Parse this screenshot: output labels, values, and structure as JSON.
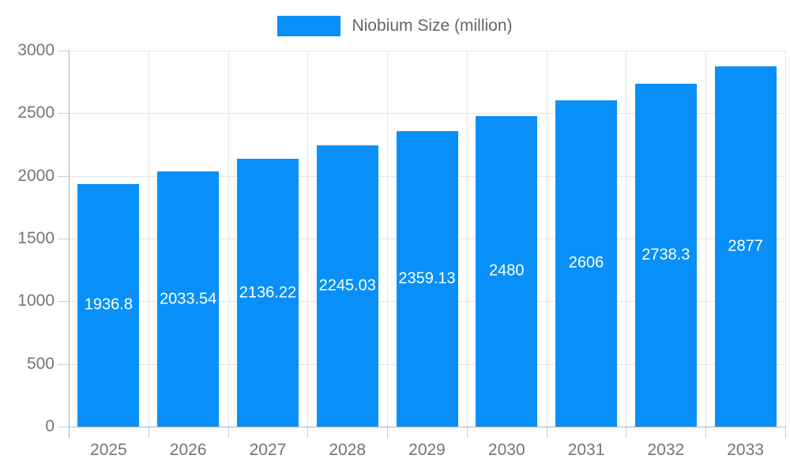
{
  "chart_data": {
    "type": "bar",
    "title": "Niobium Size (million)",
    "categories": [
      "2025",
      "2026",
      "2027",
      "2028",
      "2029",
      "2030",
      "2031",
      "2032",
      "2033"
    ],
    "series": [
      {
        "name": "Niobium Size (million)",
        "values": [
          1936.8,
          2033.54,
          2136.22,
          2245.03,
          2359.13,
          2480,
          2606,
          2738.3,
          2877
        ]
      }
    ],
    "value_labels": [
      "1936.8",
      "2033.54",
      "2136.22",
      "2245.03",
      "2359.13",
      "2480",
      "2606",
      "2738.3",
      "2877"
    ],
    "xlabel": "",
    "ylabel": "",
    "ylim": [
      0,
      3000
    ],
    "ytick_step": 500,
    "yticks": [
      "0",
      "500",
      "1000",
      "1500",
      "2000",
      "2500",
      "3000"
    ],
    "grid": true,
    "legend_position": "top-center",
    "colors": {
      "bar": "#0890F8",
      "bar_label": "#FFFFFF",
      "axis_label": "#757575",
      "legend_text": "#666666",
      "gridline": "#E6E6E6",
      "axis_line": "#B3B3B3",
      "tick": "#CCCCCC",
      "background": "#FFFFFF"
    }
  }
}
